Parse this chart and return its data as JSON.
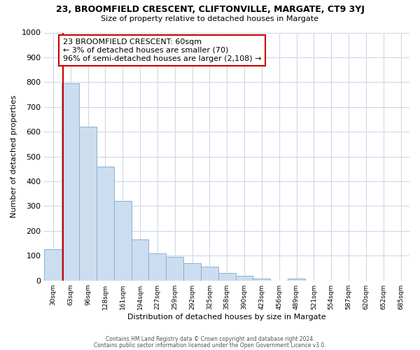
{
  "title": "23, BROOMFIELD CRESCENT, CLIFTONVILLE, MARGATE, CT9 3YJ",
  "subtitle": "Size of property relative to detached houses in Margate",
  "xlabel": "Distribution of detached houses by size in Margate",
  "ylabel": "Number of detached properties",
  "bar_labels": [
    "30sqm",
    "63sqm",
    "96sqm",
    "128sqm",
    "161sqm",
    "194sqm",
    "227sqm",
    "259sqm",
    "292sqm",
    "325sqm",
    "358sqm",
    "390sqm",
    "423sqm",
    "456sqm",
    "489sqm",
    "521sqm",
    "554sqm",
    "587sqm",
    "620sqm",
    "652sqm",
    "685sqm"
  ],
  "bar_values": [
    125,
    795,
    620,
    460,
    320,
    165,
    110,
    95,
    70,
    55,
    30,
    18,
    7,
    0,
    7,
    0,
    0,
    0,
    0,
    0,
    0
  ],
  "bar_color": "#ccddf0",
  "bar_edge_color": "#8ab0d0",
  "ylim": [
    0,
    1000
  ],
  "yticks": [
    0,
    100,
    200,
    300,
    400,
    500,
    600,
    700,
    800,
    900,
    1000
  ],
  "property_line_color": "#cc0000",
  "property_line_x": 0.57,
  "annotation_text": "23 BROOMFIELD CRESCENT: 60sqm\n← 3% of detached houses are smaller (70)\n96% of semi-detached houses are larger (2,108) →",
  "annotation_box_color": "#cc0000",
  "footer_line1": "Contains HM Land Registry data © Crown copyright and database right 2024.",
  "footer_line2": "Contains public sector information licensed under the Open Government Licence v3.0.",
  "background_color": "#ffffff",
  "grid_color": "#ccd8ea"
}
